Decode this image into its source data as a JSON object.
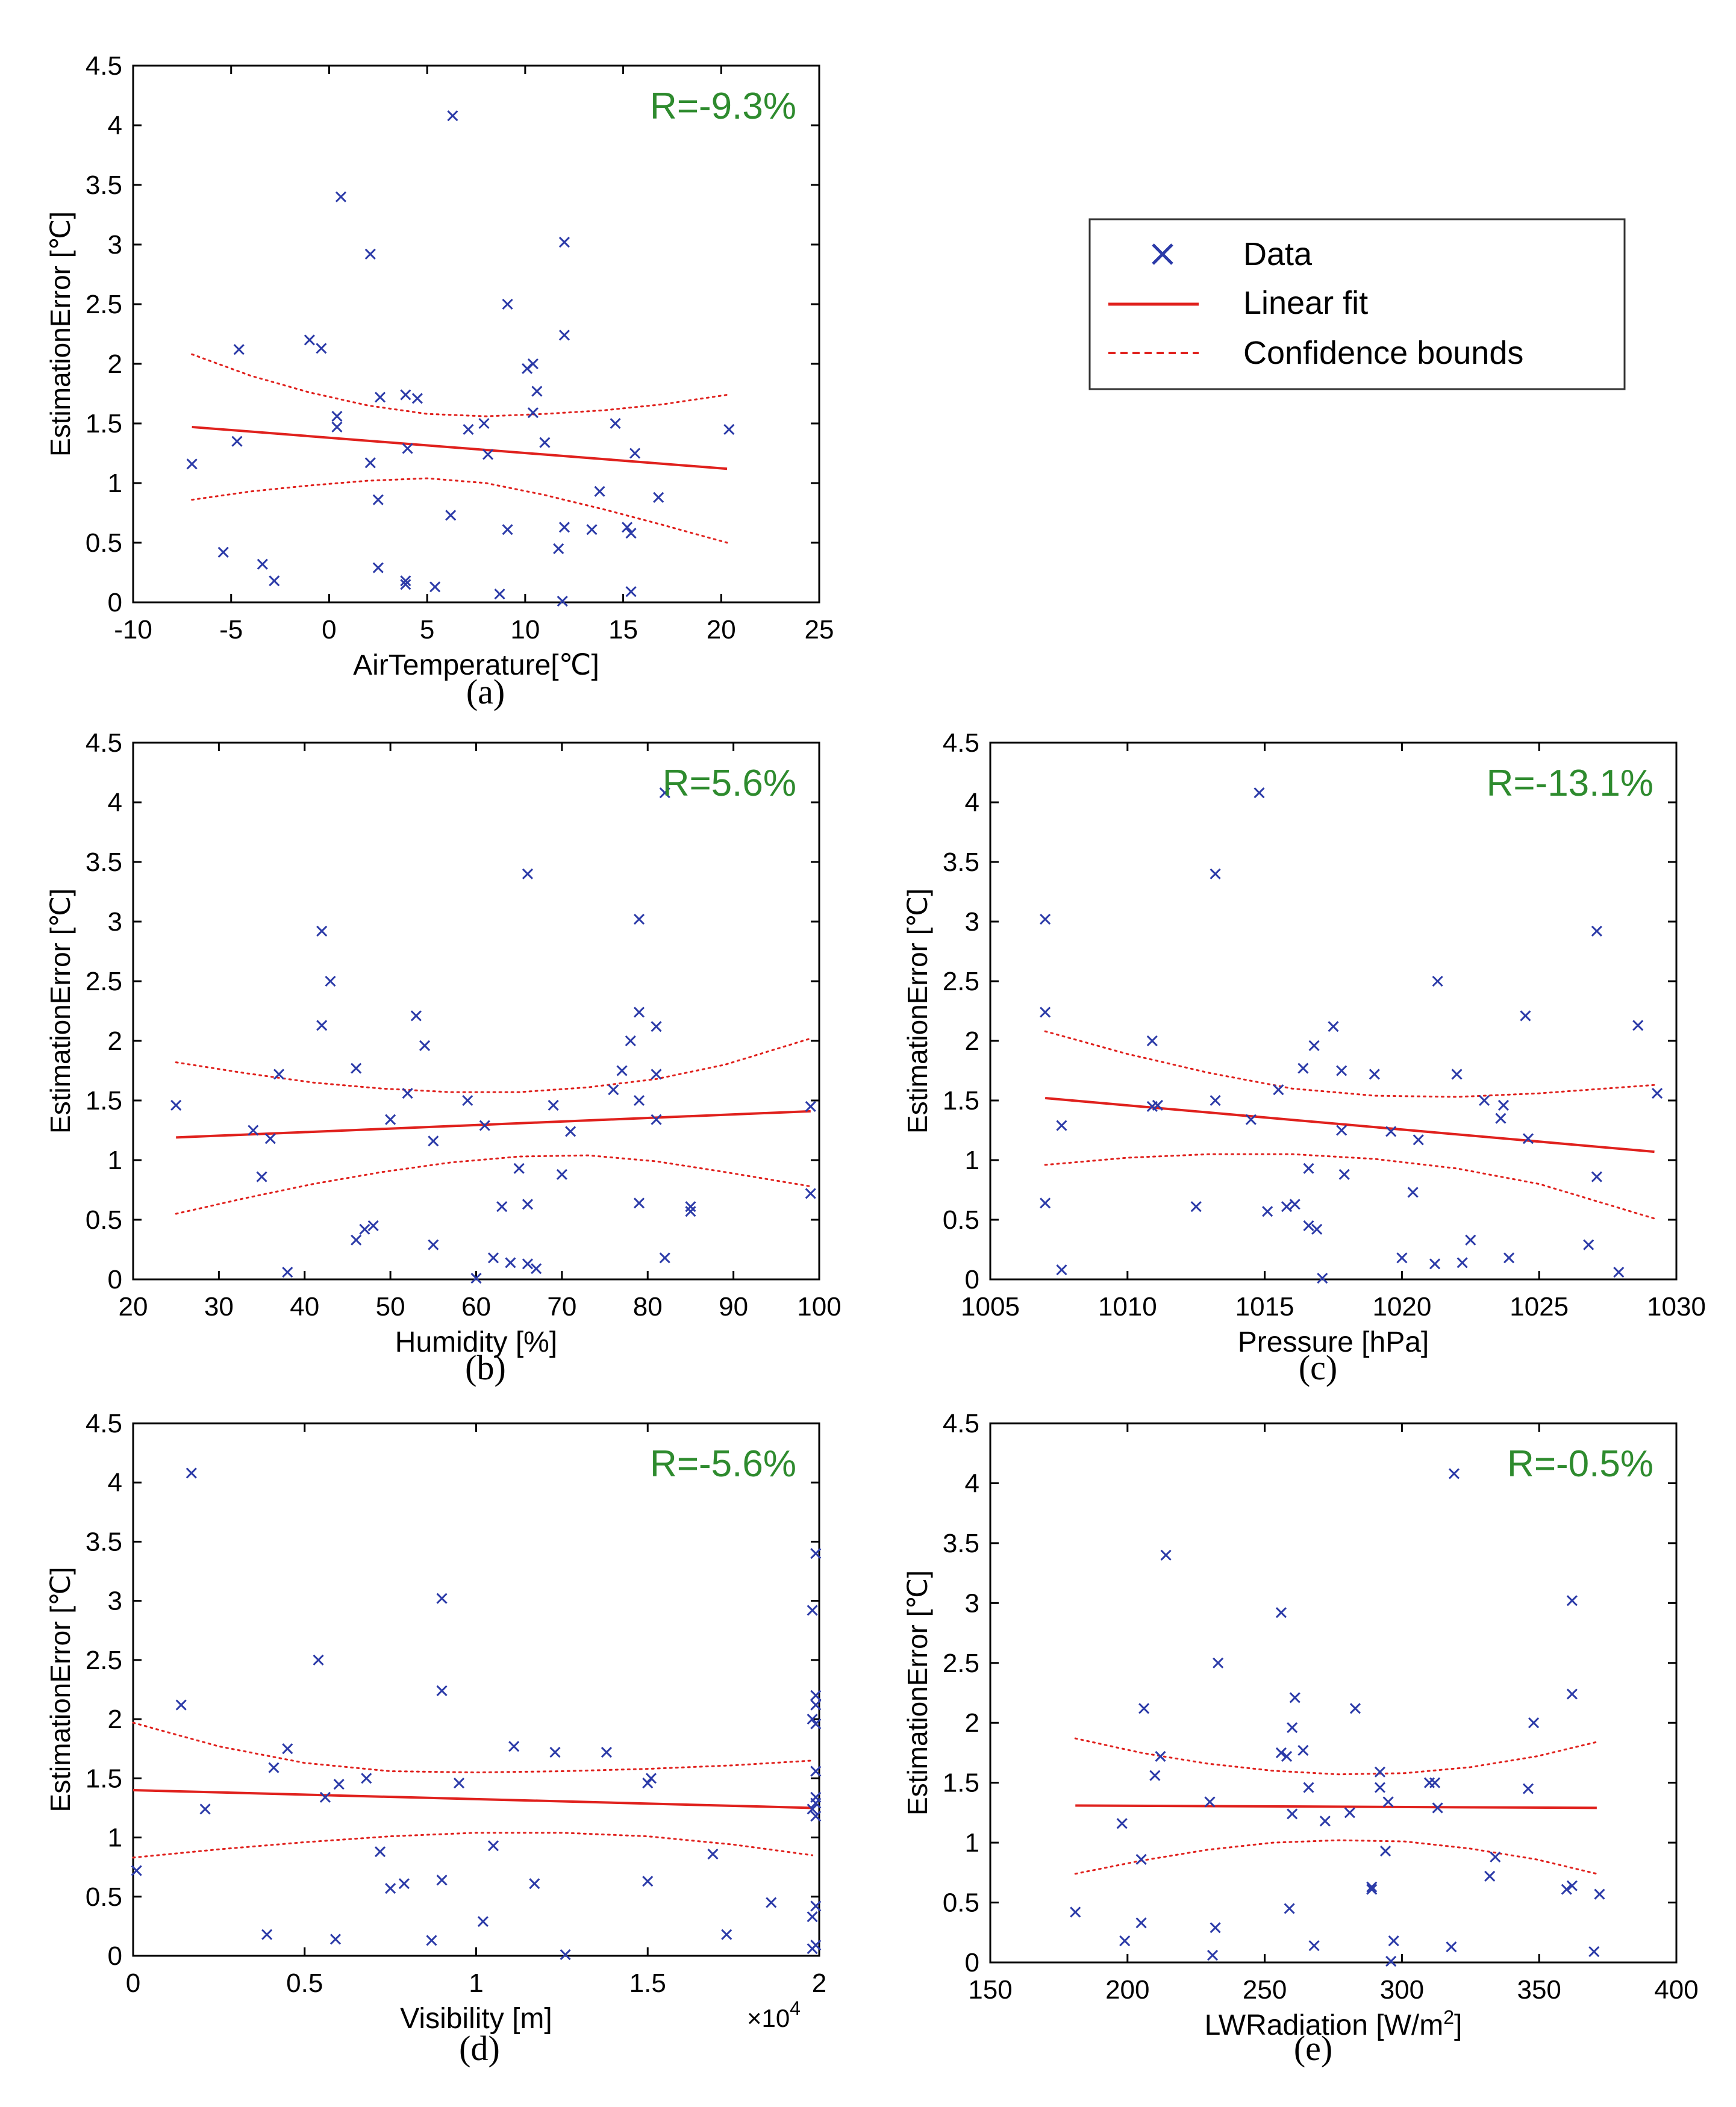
{
  "figure": {
    "ylabel": "EstimationError [℃]",
    "legend": {
      "items": [
        {
          "marker": "x",
          "label": "Data"
        },
        {
          "marker": "solid",
          "label": "Linear fit"
        },
        {
          "marker": "dashed",
          "label": "Confidence bounds"
        }
      ]
    },
    "colors": {
      "data": "#2b3aa8",
      "fit": "#e0211d",
      "annotation": "#2e8b2e",
      "axis": "#000000"
    }
  },
  "chart_data": [
    {
      "type": "scatter",
      "panel_label": "(a)",
      "xlabel": "AirTemperature[℃]",
      "ylabel": "EstimationError [℃]",
      "annotation": "R=-9.3%",
      "xlim": [
        -10,
        25
      ],
      "ylim": [
        0,
        4.5
      ],
      "xticks": [
        -10,
        -5,
        0,
        5,
        10,
        15,
        20,
        25
      ],
      "yticks": [
        0,
        0.5,
        1,
        1.5,
        2,
        2.5,
        3,
        3.5,
        4,
        4.5
      ],
      "fit": {
        "x": [
          -7.0,
          20.3
        ],
        "y": [
          1.47,
          1.12
        ]
      },
      "bounds": {
        "x": [
          -7.0,
          -4.0,
          -1.0,
          2.0,
          5.0,
          8.0,
          11.0,
          14.0,
          17.0,
          20.3
        ],
        "upper": [
          2.08,
          1.9,
          1.76,
          1.65,
          1.58,
          1.56,
          1.58,
          1.61,
          1.66,
          1.74
        ],
        "lower": [
          0.86,
          0.93,
          0.98,
          1.02,
          1.04,
          1.0,
          0.9,
          0.78,
          0.65,
          0.5
        ]
      },
      "points": [
        [
          -7.0,
          1.16
        ],
        [
          -5.4,
          0.42
        ],
        [
          -4.7,
          1.35
        ],
        [
          -4.6,
          2.12
        ],
        [
          -3.4,
          0.32
        ],
        [
          -2.8,
          0.18
        ],
        [
          -1.0,
          2.2
        ],
        [
          -0.4,
          2.13
        ],
        [
          0.4,
          1.56
        ],
        [
          0.4,
          1.47
        ],
        [
          0.6,
          3.4
        ],
        [
          2.1,
          2.92
        ],
        [
          2.1,
          1.17
        ],
        [
          2.5,
          0.86
        ],
        [
          2.5,
          0.29
        ],
        [
          2.6,
          1.72
        ],
        [
          3.9,
          1.74
        ],
        [
          3.9,
          0.18
        ],
        [
          3.9,
          0.15
        ],
        [
          4.0,
          1.29
        ],
        [
          4.5,
          1.71
        ],
        [
          5.4,
          0.13
        ],
        [
          6.2,
          0.73
        ],
        [
          6.3,
          4.08
        ],
        [
          7.1,
          1.45
        ],
        [
          7.9,
          1.5
        ],
        [
          8.1,
          1.24
        ],
        [
          8.7,
          0.07
        ],
        [
          9.1,
          2.5
        ],
        [
          9.1,
          0.61
        ],
        [
          10.1,
          1.96
        ],
        [
          10.4,
          2.0
        ],
        [
          10.4,
          1.59
        ],
        [
          10.6,
          1.77
        ],
        [
          11.0,
          1.34
        ],
        [
          11.7,
          0.45
        ],
        [
          12.0,
          3.02
        ],
        [
          12.0,
          2.24
        ],
        [
          12.0,
          0.63
        ],
        [
          11.9,
          0.01
        ],
        [
          13.4,
          0.61
        ],
        [
          13.8,
          0.93
        ],
        [
          14.6,
          1.5
        ],
        [
          15.2,
          0.63
        ],
        [
          15.6,
          1.25
        ],
        [
          15.4,
          0.58
        ],
        [
          15.4,
          0.09
        ],
        [
          16.8,
          0.88
        ],
        [
          20.4,
          1.45
        ]
      ]
    },
    {
      "type": "scatter",
      "panel_label": "(b)",
      "xlabel": "Humidity [%]",
      "ylabel": "EstimationError [℃]",
      "annotation": "R=5.6%",
      "xlim": [
        20,
        100
      ],
      "ylim": [
        0,
        4.5
      ],
      "xticks": [
        20,
        30,
        40,
        50,
        60,
        70,
        80,
        90,
        100
      ],
      "yticks": [
        0,
        0.5,
        1,
        1.5,
        2,
        2.5,
        3,
        3.5,
        4,
        4.5
      ],
      "fit": {
        "x": [
          25,
          99
        ],
        "y": [
          1.19,
          1.41
        ]
      },
      "bounds": {
        "x": [
          25,
          33,
          41,
          49,
          57,
          65,
          73,
          81,
          89,
          99
        ],
        "upper": [
          1.82,
          1.73,
          1.65,
          1.6,
          1.57,
          1.57,
          1.61,
          1.68,
          1.8,
          2.02
        ],
        "lower": [
          0.55,
          0.68,
          0.8,
          0.9,
          0.98,
          1.03,
          1.04,
          0.99,
          0.9,
          0.78
        ]
      },
      "points": [
        [
          25,
          1.46
        ],
        [
          34,
          1.25
        ],
        [
          35,
          0.86
        ],
        [
          36,
          1.18
        ],
        [
          37,
          1.72
        ],
        [
          38,
          0.06
        ],
        [
          42,
          2.92
        ],
        [
          42,
          2.13
        ],
        [
          43,
          2.5
        ],
        [
          46,
          1.77
        ],
        [
          46,
          0.33
        ],
        [
          47,
          0.42
        ],
        [
          48,
          0.45
        ],
        [
          50,
          1.34
        ],
        [
          52,
          1.56
        ],
        [
          53,
          2.21
        ],
        [
          54,
          1.96
        ],
        [
          55,
          1.16
        ],
        [
          55,
          0.29
        ],
        [
          59,
          1.5
        ],
        [
          60,
          0.01
        ],
        [
          61,
          1.29
        ],
        [
          62,
          0.18
        ],
        [
          63,
          0.61
        ],
        [
          64,
          0.14
        ],
        [
          65,
          0.93
        ],
        [
          66,
          3.4
        ],
        [
          66,
          0.63
        ],
        [
          66,
          0.13
        ],
        [
          67,
          0.09
        ],
        [
          69,
          1.46
        ],
        [
          70,
          0.88
        ],
        [
          71,
          1.24
        ],
        [
          76,
          1.59
        ],
        [
          77,
          1.75
        ],
        [
          78,
          2.0
        ],
        [
          79,
          3.02
        ],
        [
          79,
          2.24
        ],
        [
          79,
          1.5
        ],
        [
          79,
          0.64
        ],
        [
          81,
          2.12
        ],
        [
          81,
          1.72
        ],
        [
          81,
          1.34
        ],
        [
          82,
          0.18
        ],
        [
          82,
          4.08
        ],
        [
          85,
          0.61
        ],
        [
          85,
          0.57
        ],
        [
          99,
          1.45
        ],
        [
          99,
          0.72
        ]
      ]
    },
    {
      "type": "scatter",
      "panel_label": "(c)",
      "xlabel": "Pressure [hPa]",
      "ylabel": "EstimationError [℃]",
      "annotation": "R=-13.1%",
      "xlim": [
        1005,
        1030
      ],
      "ylim": [
        0,
        4.5
      ],
      "xticks": [
        1005,
        1010,
        1015,
        1020,
        1025,
        1030
      ],
      "yticks": [
        0,
        0.5,
        1,
        1.5,
        2,
        2.5,
        3,
        3.5,
        4,
        4.5
      ],
      "fit": {
        "x": [
          1007,
          1029.2
        ],
        "y": [
          1.52,
          1.07
        ]
      },
      "bounds": {
        "x": [
          1007,
          1010,
          1013,
          1016,
          1019,
          1022,
          1025,
          1029.2
        ],
        "upper": [
          2.08,
          1.89,
          1.73,
          1.6,
          1.54,
          1.53,
          1.56,
          1.63
        ],
        "lower": [
          0.96,
          1.02,
          1.05,
          1.05,
          1.01,
          0.93,
          0.8,
          0.51
        ]
      },
      "points": [
        [
          1007.0,
          3.02
        ],
        [
          1007.0,
          2.24
        ],
        [
          1007.0,
          0.64
        ],
        [
          1007.6,
          1.29
        ],
        [
          1007.6,
          0.08
        ],
        [
          1010.9,
          2.0
        ],
        [
          1010.9,
          1.45
        ],
        [
          1011.1,
          1.46
        ],
        [
          1012.5,
          0.61
        ],
        [
          1013.2,
          3.4
        ],
        [
          1013.2,
          1.5
        ],
        [
          1014.5,
          1.34
        ],
        [
          1014.8,
          4.08
        ],
        [
          1015.1,
          0.57
        ],
        [
          1015.5,
          1.59
        ],
        [
          1015.8,
          0.61
        ],
        [
          1016.1,
          0.63
        ],
        [
          1016.4,
          1.77
        ],
        [
          1016.6,
          0.93
        ],
        [
          1016.6,
          0.45
        ],
        [
          1016.8,
          1.96
        ],
        [
          1016.9,
          0.42
        ],
        [
          1017.1,
          0.01
        ],
        [
          1017.5,
          2.12
        ],
        [
          1017.8,
          1.75
        ],
        [
          1017.8,
          1.25
        ],
        [
          1017.9,
          0.88
        ],
        [
          1019.0,
          1.72
        ],
        [
          1019.6,
          1.24
        ],
        [
          1020.0,
          0.18
        ],
        [
          1020.4,
          0.73
        ],
        [
          1020.6,
          1.17
        ],
        [
          1021.2,
          0.13
        ],
        [
          1021.3,
          2.5
        ],
        [
          1022.0,
          1.72
        ],
        [
          1022.2,
          0.14
        ],
        [
          1022.5,
          0.33
        ],
        [
          1023.0,
          1.5
        ],
        [
          1023.6,
          1.35
        ],
        [
          1023.7,
          1.46
        ],
        [
          1023.9,
          0.18
        ],
        [
          1024.5,
          2.21
        ],
        [
          1024.6,
          1.18
        ],
        [
          1026.8,
          0.29
        ],
        [
          1027.1,
          2.92
        ],
        [
          1027.1,
          0.86
        ],
        [
          1027.9,
          0.06
        ],
        [
          1028.6,
          2.13
        ],
        [
          1029.3,
          1.56
        ]
      ]
    },
    {
      "type": "scatter",
      "panel_label": "(d)",
      "xlabel": "Visibility [m]",
      "ylabel": "EstimationError [℃]",
      "annotation": "R=-5.6%",
      "x_multiplier": "×10",
      "x_multiplier_exp": "4",
      "xlim": [
        0,
        2
      ],
      "ylim": [
        0,
        4.5
      ],
      "xticks": [
        0,
        0.5,
        1,
        1.5,
        2
      ],
      "yticks": [
        0,
        0.5,
        1,
        1.5,
        2,
        2.5,
        3,
        3.5,
        4,
        4.5
      ],
      "fit": {
        "x": [
          0.0,
          1.98
        ],
        "y": [
          1.4,
          1.25
        ]
      },
      "bounds": {
        "x": [
          0.0,
          0.25,
          0.5,
          0.75,
          1.0,
          1.25,
          1.5,
          1.75,
          1.98
        ],
        "upper": [
          1.97,
          1.77,
          1.63,
          1.56,
          1.55,
          1.56,
          1.58,
          1.61,
          1.65
        ],
        "lower": [
          0.83,
          0.9,
          0.96,
          1.01,
          1.04,
          1.04,
          1.01,
          0.94,
          0.85
        ]
      },
      "points": [
        [
          0.01,
          0.72
        ],
        [
          0.14,
          2.12
        ],
        [
          0.17,
          4.08
        ],
        [
          0.21,
          1.24
        ],
        [
          0.39,
          0.18
        ],
        [
          0.41,
          1.59
        ],
        [
          0.45,
          1.75
        ],
        [
          0.54,
          2.5
        ],
        [
          0.56,
          1.34
        ],
        [
          0.59,
          0.14
        ],
        [
          0.6,
          1.45
        ],
        [
          0.68,
          1.5
        ],
        [
          0.72,
          0.88
        ],
        [
          0.75,
          0.57
        ],
        [
          0.79,
          0.61
        ],
        [
          0.87,
          0.13
        ],
        [
          0.9,
          3.02
        ],
        [
          0.9,
          2.24
        ],
        [
          0.9,
          0.64
        ],
        [
          0.95,
          1.46
        ],
        [
          1.02,
          0.29
        ],
        [
          1.05,
          0.93
        ],
        [
          1.11,
          1.77
        ],
        [
          1.17,
          0.61
        ],
        [
          1.23,
          1.72
        ],
        [
          1.26,
          0.01
        ],
        [
          1.38,
          1.72
        ],
        [
          1.5,
          1.46
        ],
        [
          1.51,
          1.5
        ],
        [
          1.5,
          0.63
        ],
        [
          1.69,
          0.86
        ],
        [
          1.73,
          0.18
        ],
        [
          1.86,
          0.45
        ],
        [
          1.98,
          2.92
        ],
        [
          1.99,
          3.4
        ],
        [
          1.99,
          2.2
        ],
        [
          1.99,
          2.12
        ],
        [
          1.98,
          2.0
        ],
        [
          1.99,
          1.96
        ],
        [
          1.99,
          1.56
        ],
        [
          1.99,
          1.34
        ],
        [
          1.99,
          1.29
        ],
        [
          1.98,
          1.24
        ],
        [
          1.99,
          1.18
        ],
        [
          1.99,
          0.42
        ],
        [
          1.98,
          0.33
        ],
        [
          1.99,
          0.09
        ],
        [
          1.98,
          0.06
        ]
      ]
    },
    {
      "type": "scatter",
      "panel_label": "(e)",
      "xlabel": "LWRadiation [W/m",
      "xlabel_sup": "2",
      "xlabel_end": "]",
      "ylabel": "EstimationError [℃]",
      "annotation": "R=-0.5%",
      "xlim": [
        150,
        400
      ],
      "ylim": [
        0,
        4.5
      ],
      "xticks": [
        150,
        200,
        250,
        300,
        350,
        400
      ],
      "yticks": [
        0,
        0.5,
        1,
        1.5,
        2,
        2.5,
        3,
        3.5,
        4,
        4.5
      ],
      "fit": {
        "x": [
          181,
          371
        ],
        "y": [
          1.31,
          1.29
        ]
      },
      "bounds": {
        "x": [
          181,
          205,
          229,
          253,
          277,
          301,
          325,
          349,
          371
        ],
        "upper": [
          1.87,
          1.75,
          1.66,
          1.6,
          1.57,
          1.58,
          1.63,
          1.72,
          1.84
        ],
        "lower": [
          0.74,
          0.85,
          0.94,
          1.0,
          1.02,
          1.01,
          0.95,
          0.86,
          0.74
        ]
      },
      "points": [
        [
          181,
          0.42
        ],
        [
          198,
          1.16
        ],
        [
          199,
          0.18
        ],
        [
          205,
          0.33
        ],
        [
          205,
          0.86
        ],
        [
          206,
          2.12
        ],
        [
          210,
          1.56
        ],
        [
          212,
          1.72
        ],
        [
          214,
          3.4
        ],
        [
          230,
          1.34
        ],
        [
          231,
          0.06
        ],
        [
          232,
          0.29
        ],
        [
          233,
          2.5
        ],
        [
          256,
          2.92
        ],
        [
          256,
          1.75
        ],
        [
          258,
          1.72
        ],
        [
          259,
          0.45
        ],
        [
          260,
          1.24
        ],
        [
          260,
          1.96
        ],
        [
          261,
          2.21
        ],
        [
          264,
          1.77
        ],
        [
          266,
          1.46
        ],
        [
          268,
          0.14
        ],
        [
          272,
          1.18
        ],
        [
          281,
          1.25
        ],
        [
          283,
          2.12
        ],
        [
          289,
          0.63
        ],
        [
          289,
          0.61
        ],
        [
          292,
          1.59
        ],
        [
          292,
          1.46
        ],
        [
          294,
          0.93
        ],
        [
          295,
          1.34
        ],
        [
          296,
          0.01
        ],
        [
          297,
          0.18
        ],
        [
          310,
          1.5
        ],
        [
          312,
          1.5
        ],
        [
          313,
          1.29
        ],
        [
          318,
          0.13
        ],
        [
          319,
          4.08
        ],
        [
          332,
          0.72
        ],
        [
          334,
          0.88
        ],
        [
          346,
          1.45
        ],
        [
          348,
          2.0
        ],
        [
          360,
          0.61
        ],
        [
          362,
          0.64
        ],
        [
          362,
          3.02
        ],
        [
          362,
          2.24
        ],
        [
          370,
          0.09
        ],
        [
          372,
          0.57
        ]
      ]
    }
  ]
}
